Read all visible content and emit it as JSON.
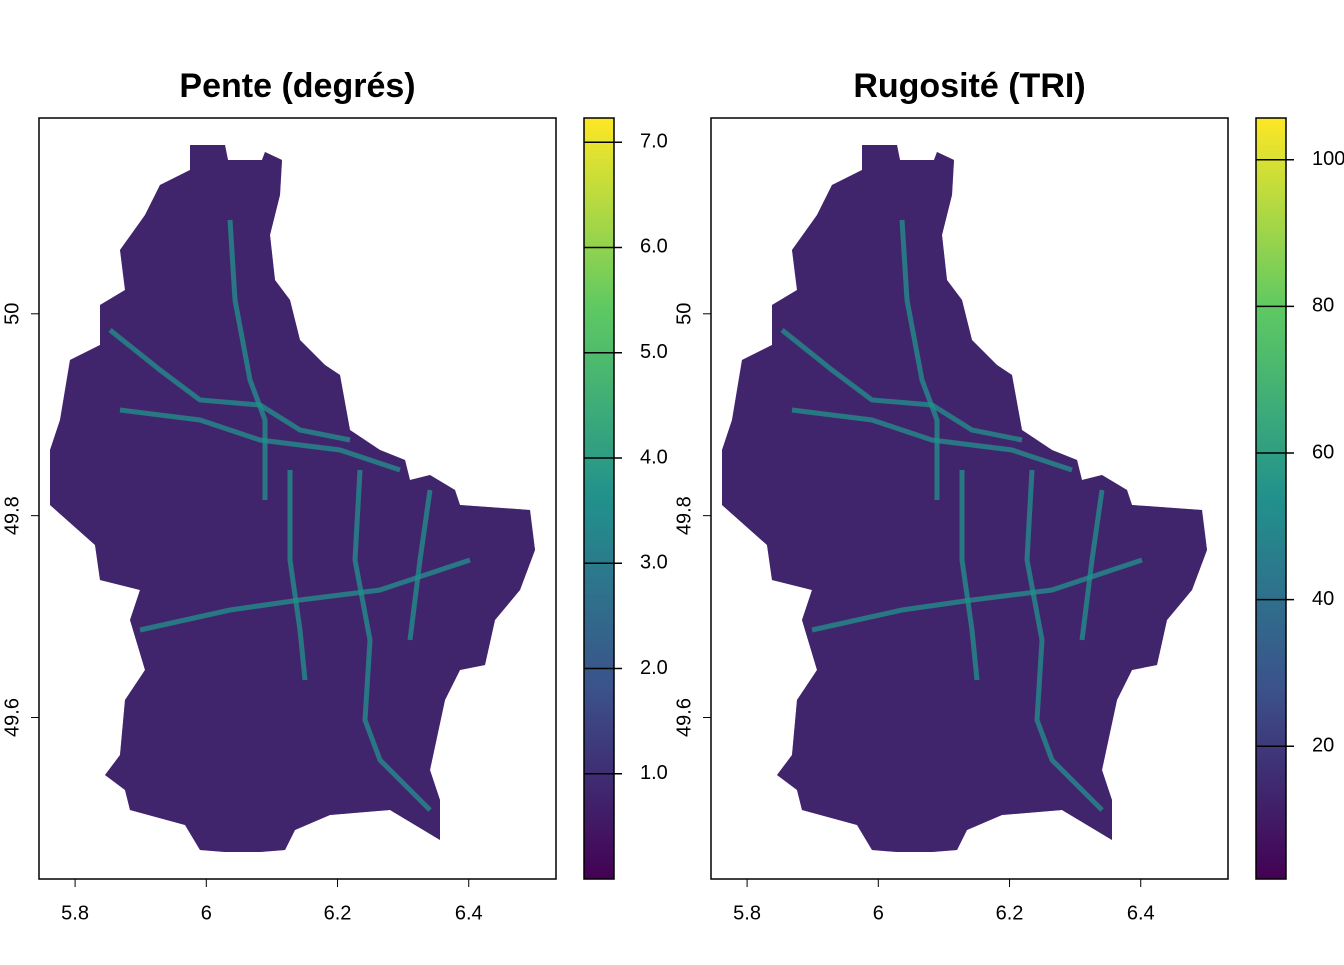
{
  "chart_data": [
    {
      "type": "raster",
      "title": "Pente (degrés)",
      "xlim": [
        5.745,
        6.533
      ],
      "xticks": [
        {
          "value": 5.8,
          "label": "5.8"
        },
        6,
        6.2,
        6.4
      ],
      "ylim": [
        49.44,
        50.194
      ],
      "yticks": [
        49.6,
        49.8,
        50
      ],
      "colorbar": {
        "lim": [
          0,
          7.23
        ],
        "ticks": [
          {
            "value": 1,
            "label": "1.0"
          },
          {
            "value": 2,
            "label": "2.0"
          },
          {
            "value": 3,
            "label": "3.0"
          },
          {
            "value": 4,
            "label": "4.0"
          },
          {
            "value": 5,
            "label": "5.0"
          },
          {
            "value": 6,
            "label": "6.0"
          },
          {
            "value": 7,
            "label": "7.0"
          }
        ],
        "colors": [
          "#440154",
          "#3b528b",
          "#21918c",
          "#5ec962",
          "#fde725"
        ]
      }
    },
    {
      "type": "raster",
      "title": "Rugosité (TRI)",
      "xlim": [
        5.745,
        6.533
      ],
      "xticks": [
        {
          "value": 5.8,
          "label": "5.8"
        },
        6,
        6.2,
        6.4
      ],
      "ylim": [
        49.44,
        50.194
      ],
      "yticks": [
        49.6,
        49.8,
        50
      ],
      "colorbar": {
        "lim": [
          1.9,
          105.7
        ],
        "ticks": [
          20,
          40,
          60,
          80,
          100
        ],
        "colors": [
          "#440154",
          "#3b528b",
          "#21918c",
          "#5ec962",
          "#fde725"
        ]
      }
    }
  ]
}
